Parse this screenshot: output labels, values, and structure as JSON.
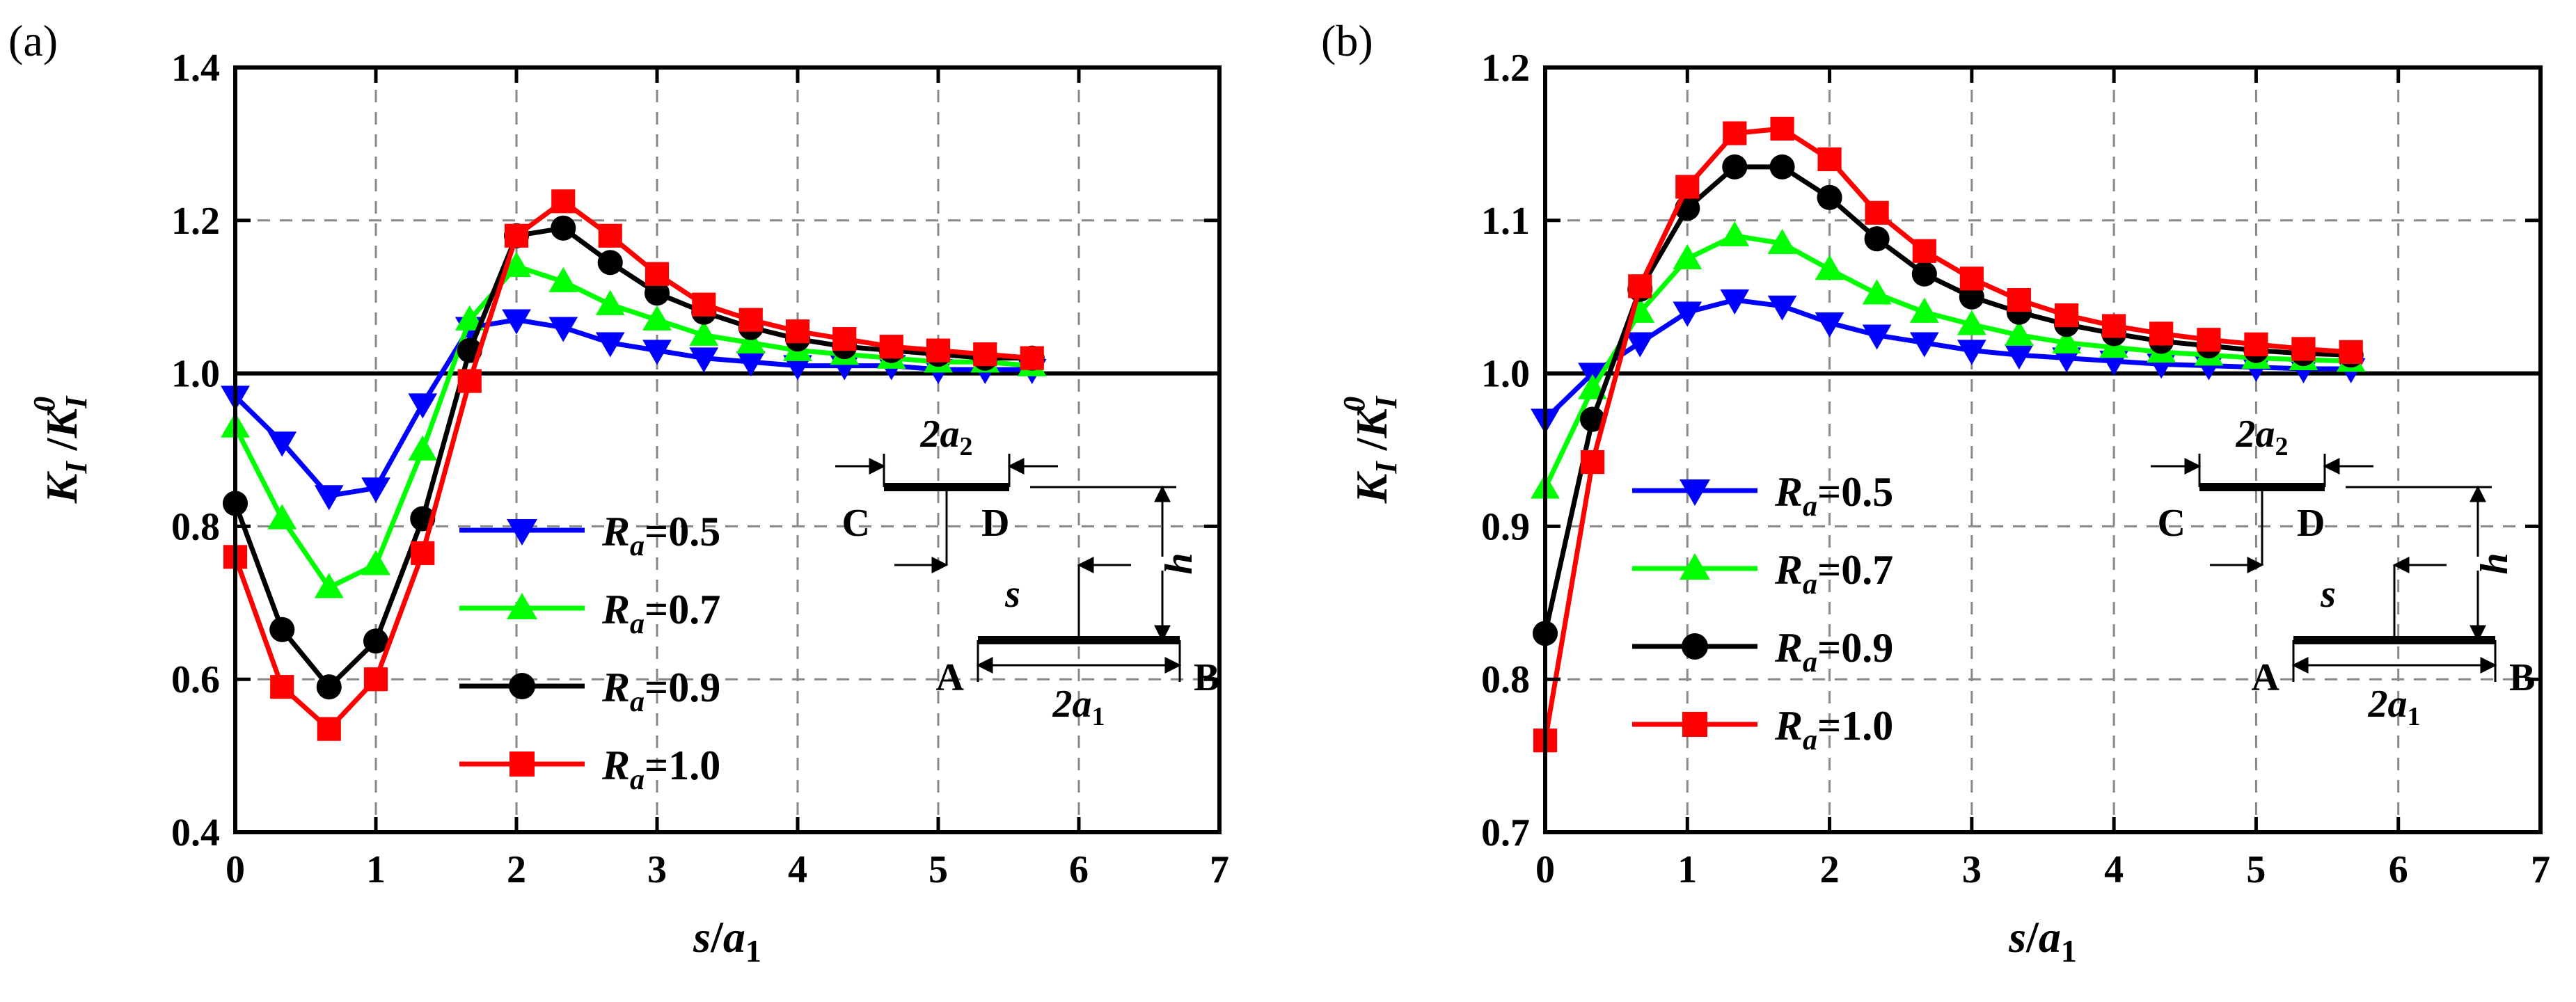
{
  "chart_data": [
    {
      "panel_label": "(a)",
      "type": "line",
      "xlabel": {
        "main": "s",
        "slash": "/",
        "sub_var": "a",
        "sub": "1"
      },
      "ylabel": {
        "num": "K",
        "num_sub": "I",
        "slash": "/",
        "den": "K",
        "den_sub": "I",
        "den_sup": "0"
      },
      "xlim": [
        0,
        7
      ],
      "ylim": [
        0.4,
        1.4
      ],
      "xticks": [
        "0",
        "1",
        "2",
        "3",
        "4",
        "5",
        "6",
        "7"
      ],
      "yticks": [
        "0.4",
        "0.6",
        "0.8",
        "1.0",
        "1.2",
        "1.4"
      ],
      "xtick_values": [
        0,
        1,
        2,
        3,
        4,
        5,
        6,
        7
      ],
      "ytick_values": [
        0.4,
        0.6,
        0.8,
        1.0,
        1.2,
        1.4
      ],
      "grid": true,
      "reference_line": 1.0,
      "x": [
        0,
        0.333,
        0.667,
        1.0,
        1.333,
        1.667,
        2.0,
        2.333,
        2.667,
        3.0,
        3.333,
        3.667,
        4.0,
        4.333,
        4.667,
        5.0,
        5.333,
        5.667
      ],
      "series": [
        {
          "name": "Ra=0.5",
          "label_var": "R",
          "label_sub": "a",
          "label_val": "=0.5",
          "color": "#0000ff",
          "marker": "triangle-down",
          "values": [
            0.97,
            0.91,
            0.84,
            0.85,
            0.96,
            1.06,
            1.07,
            1.06,
            1.04,
            1.03,
            1.02,
            1.015,
            1.01,
            1.01,
            1.01,
            1.005,
            1.005,
            1.005
          ]
        },
        {
          "name": "Ra=0.7",
          "label_var": "R",
          "label_sub": "a",
          "label_val": "=0.7",
          "color": "#00ff00",
          "marker": "triangle-up",
          "values": [
            0.93,
            0.81,
            0.72,
            0.75,
            0.9,
            1.07,
            1.14,
            1.12,
            1.09,
            1.07,
            1.05,
            1.04,
            1.03,
            1.025,
            1.02,
            1.015,
            1.015,
            1.01
          ]
        },
        {
          "name": "Ra=0.9",
          "label_var": "R",
          "label_sub": "a",
          "label_val": "=0.9",
          "color": "#000000",
          "marker": "circle",
          "values": [
            0.83,
            0.665,
            0.59,
            0.65,
            0.81,
            1.03,
            1.18,
            1.19,
            1.145,
            1.105,
            1.08,
            1.06,
            1.045,
            1.035,
            1.03,
            1.025,
            1.02,
            1.02
          ]
        },
        {
          "name": "Ra=1.0",
          "label_var": "R",
          "label_sub": "a",
          "label_val": "=1.0",
          "color": "#ff0000",
          "marker": "square",
          "values": [
            0.76,
            0.59,
            0.535,
            0.6,
            0.765,
            0.99,
            1.18,
            1.225,
            1.18,
            1.13,
            1.09,
            1.07,
            1.055,
            1.045,
            1.035,
            1.03,
            1.025,
            1.02
          ]
        }
      ],
      "schematic": {
        "top_length": "2a",
        "top_length_sub": "2",
        "label_c": "C",
        "label_d": "D",
        "label_s": "s",
        "label_h": "h",
        "label_a": "A",
        "label_b": "B",
        "bottom_length": "2a",
        "bottom_length_sub": "1"
      }
    },
    {
      "panel_label": "(b)",
      "type": "line",
      "xlabel": {
        "main": "s",
        "slash": "/",
        "sub_var": "a",
        "sub": "1"
      },
      "ylabel": {
        "num": "K",
        "num_sub": "I",
        "slash": "/",
        "den": "K",
        "den_sub": "I",
        "den_sup": "0"
      },
      "xlim": [
        0,
        7
      ],
      "ylim": [
        0.7,
        1.2
      ],
      "xticks": [
        "0",
        "1",
        "2",
        "3",
        "4",
        "5",
        "6",
        "7"
      ],
      "yticks": [
        "0.7",
        "0.8",
        "0.9",
        "1.0",
        "1.1",
        "1.2"
      ],
      "xtick_values": [
        0,
        1,
        2,
        3,
        4,
        5,
        6,
        7
      ],
      "ytick_values": [
        0.7,
        0.8,
        0.9,
        1.0,
        1.1,
        1.2
      ],
      "grid": true,
      "reference_line": 1.0,
      "x": [
        0,
        0.333,
        0.667,
        1.0,
        1.333,
        1.667,
        2.0,
        2.333,
        2.667,
        3.0,
        3.333,
        3.667,
        4.0,
        4.333,
        4.667,
        5.0,
        5.333,
        5.667
      ],
      "series": [
        {
          "name": "Ra=0.5",
          "label_var": "R",
          "label_sub": "a",
          "label_val": "=0.5",
          "color": "#0000ff",
          "marker": "triangle-down",
          "values": [
            0.97,
            1.0,
            1.02,
            1.04,
            1.048,
            1.044,
            1.033,
            1.025,
            1.02,
            1.015,
            1.012,
            1.01,
            1.008,
            1.006,
            1.005,
            1.004,
            1.003,
            1.003
          ]
        },
        {
          "name": "Ra=0.7",
          "label_var": "R",
          "label_sub": "a",
          "label_val": "=0.7",
          "color": "#00ff00",
          "marker": "triangle-up",
          "values": [
            0.925,
            0.99,
            1.04,
            1.075,
            1.09,
            1.085,
            1.068,
            1.052,
            1.04,
            1.032,
            1.025,
            1.02,
            1.017,
            1.014,
            1.012,
            1.01,
            1.009,
            1.008
          ]
        },
        {
          "name": "Ra=0.9",
          "label_var": "R",
          "label_sub": "a",
          "label_val": "=0.9",
          "color": "#000000",
          "marker": "circle",
          "values": [
            0.83,
            0.97,
            1.055,
            1.108,
            1.135,
            1.135,
            1.115,
            1.088,
            1.065,
            1.05,
            1.04,
            1.032,
            1.026,
            1.021,
            1.018,
            1.015,
            1.013,
            1.012
          ]
        },
        {
          "name": "Ra=1.0",
          "label_var": "R",
          "label_sub": "a",
          "label_val": "=1.0",
          "color": "#ff0000",
          "marker": "square",
          "values": [
            0.76,
            0.942,
            1.057,
            1.122,
            1.157,
            1.16,
            1.14,
            1.105,
            1.08,
            1.062,
            1.048,
            1.038,
            1.031,
            1.026,
            1.022,
            1.019,
            1.016,
            1.014
          ]
        }
      ],
      "schematic": {
        "top_length": "2a",
        "top_length_sub": "2",
        "label_c": "C",
        "label_d": "D",
        "label_s": "s",
        "label_h": "h",
        "label_a": "A",
        "label_b": "B",
        "bottom_length": "2a",
        "bottom_length_sub": "1"
      }
    }
  ]
}
